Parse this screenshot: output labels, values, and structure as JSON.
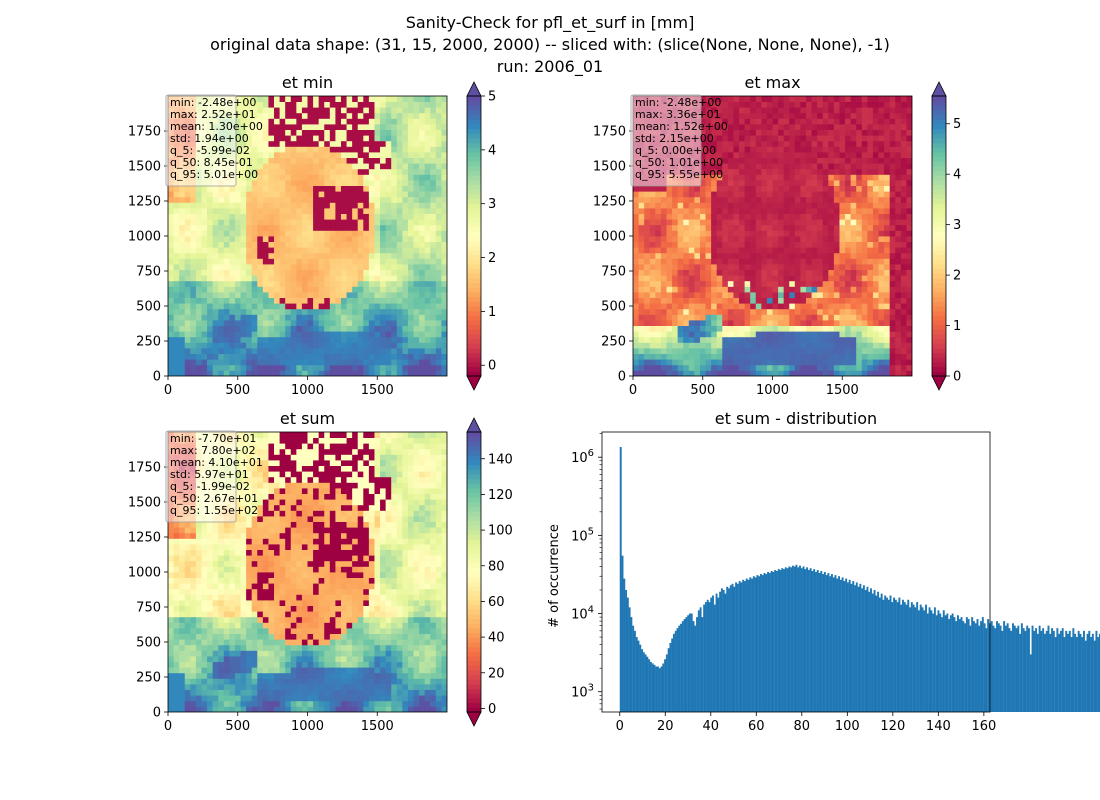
{
  "suptitle": {
    "line1": "Sanity-Check for pfl_et_surf in [mm]",
    "line2": "original data shape: (31, 15, 2000, 2000) -- sliced with: (slice(None, None, None), -1)",
    "line3": "run: 2006_01"
  },
  "colors": {
    "spectral": [
      "#9e0142",
      "#d53e4f",
      "#f46d43",
      "#fdae61",
      "#fee08b",
      "#ffffbf",
      "#e6f598",
      "#abdda4",
      "#66c2a5",
      "#3288bd",
      "#5e4fa2"
    ],
    "bar": "#1f77b4"
  },
  "chart_data": [
    {
      "type": "heatmap",
      "title": "et min",
      "xticks": [
        0,
        500,
        1000,
        1500
      ],
      "yticks": [
        0,
        250,
        500,
        750,
        1000,
        1250,
        1500,
        1750
      ],
      "xlim": [
        0,
        2000
      ],
      "ylim": [
        0,
        2000
      ],
      "colorbar": {
        "vmin": -0.2,
        "vmax": 5,
        "ticks": [
          0,
          1,
          2,
          3,
          4,
          5
        ],
        "extend": "both",
        "colormap": "Spectral"
      },
      "stats": [
        "min: -2.48e+00",
        "max: 2.52e+01",
        "mean: 1.30e+00",
        "std: 1.94e+00",
        "q_5: -5.99e-02",
        "q_50: 8.45e-01",
        "q_95: 5.01e+00"
      ]
    },
    {
      "type": "heatmap",
      "title": "et max",
      "xticks": [
        0,
        500,
        1000,
        1500
      ],
      "yticks": [
        0,
        250,
        500,
        750,
        1000,
        1250,
        1500,
        1750
      ],
      "xlim": [
        0,
        2000
      ],
      "ylim": [
        0,
        2000
      ],
      "colorbar": {
        "vmin": 0,
        "vmax": 5.55,
        "ticks": [
          0,
          1,
          2,
          3,
          4,
          5
        ],
        "extend": "both",
        "colormap": "Spectral"
      },
      "stats": [
        "min: -2.48e+00",
        "max: 3.36e+01",
        "mean: 1.52e+00",
        "std: 2.15e+00",
        "q_5: 0.00e+00",
        "q_50: 1.01e+00",
        "q_95: 5.55e+00"
      ]
    },
    {
      "type": "heatmap",
      "title": "et sum",
      "xticks": [
        0,
        500,
        1000,
        1500
      ],
      "yticks": [
        0,
        250,
        500,
        750,
        1000,
        1250,
        1500,
        1750
      ],
      "xlim": [
        0,
        2000
      ],
      "ylim": [
        0,
        2000
      ],
      "colorbar": {
        "vmin": -2,
        "vmax": 155,
        "ticks": [
          0,
          20,
          40,
          60,
          80,
          100,
          120,
          140
        ],
        "extend": "both",
        "colormap": "Spectral"
      },
      "stats": [
        "min: -7.70e+01",
        "max: 7.80e+02",
        "mean: 4.10e+01",
        "std: 5.97e+01",
        "q_5: -1.99e-02",
        "q_50: 2.67e+01",
        "q_95: 1.55e+02"
      ]
    },
    {
      "type": "bar",
      "title": "et sum - distribution",
      "ylabel": "# of occurrence",
      "xlabel": "",
      "yscale": "log",
      "xlim": [
        -7.8,
        162.7
      ],
      "ylim": [
        550,
        2100000
      ],
      "xticks": [
        0,
        20,
        40,
        60,
        80,
        100,
        120,
        140,
        160
      ],
      "yticks": [
        1000,
        10000,
        100000,
        1000000
      ],
      "ytick_labels": [
        "10^3",
        "10^4",
        "10^5",
        "10^6"
      ],
      "bin_width": 0.78,
      "bin_start": 0,
      "values": [
        1350000,
        55000,
        28000,
        20000,
        16000,
        12000,
        9000,
        7000,
        6000,
        5000,
        4500,
        4000,
        3500,
        3200,
        3000,
        2800,
        2600,
        2400,
        2300,
        2200,
        2100,
        2100,
        2000,
        2100,
        2300,
        2600,
        3000,
        3600,
        4200,
        4800,
        5500,
        6000,
        6500,
        7000,
        7400,
        8000,
        8500,
        9000,
        9500,
        10000,
        10000,
        8000,
        7000,
        9000,
        11000,
        12000,
        9000,
        13000,
        14000,
        15000,
        14000,
        16000,
        17000,
        13000,
        18000,
        16000,
        19000,
        21000,
        20000,
        18000,
        22000,
        21000,
        23000,
        24000,
        22000,
        25000,
        24000,
        26000,
        25000,
        27000,
        26000,
        28000,
        27000,
        29000,
        28000,
        30000,
        29000,
        31000,
        30000,
        32000,
        31000,
        33000,
        32000,
        34000,
        33000,
        35000,
        34000,
        36000,
        35000,
        37000,
        36000,
        38000,
        37000,
        39000,
        38000,
        40000,
        39000,
        41000,
        40000,
        42000,
        39000,
        41000,
        38000,
        40000,
        37000,
        39000,
        36000,
        38000,
        35000,
        37000,
        34000,
        36000,
        33000,
        35000,
        32000,
        34000,
        31000,
        33000,
        30000,
        32000,
        29000,
        31000,
        28000,
        30000,
        27000,
        29000,
        26000,
        28000,
        25000,
        27000,
        24000,
        26000,
        23000,
        25000,
        22000,
        24000,
        21000,
        23000,
        20000,
        22000,
        19000,
        21000,
        18000,
        20000,
        17000,
        19000,
        16000,
        18000,
        15000,
        17000,
        16000,
        15000,
        17000,
        14000,
        16000,
        15000,
        14000,
        16000,
        13000,
        15000,
        14000,
        13000,
        15000,
        12000,
        14000,
        13000,
        12000,
        14000,
        11000,
        13000,
        12000,
        11000,
        13000,
        10000,
        12000,
        11000,
        10000,
        12000,
        9500,
        11000,
        10000,
        9000,
        11000,
        9500,
        10000,
        8500,
        9500,
        10000,
        9000,
        8000,
        9500,
        8500,
        9000,
        8000,
        7500,
        9000,
        8500,
        7000,
        9000,
        8000,
        7500,
        8500,
        7000,
        8000,
        9000,
        7500,
        6500,
        8500,
        7500,
        8000,
        7000,
        6500,
        8000,
        7500,
        7000,
        6000,
        8000,
        7000,
        7500,
        6500,
        6000,
        7500,
        7000,
        6500,
        7000,
        5500,
        7500,
        6500,
        6000,
        7000,
        6500,
        3000,
        7000,
        6000,
        6500,
        5500,
        7000,
        6000,
        6500,
        5500,
        6000,
        7000,
        5500,
        6500,
        6000,
        5000,
        6500,
        5500,
        6000,
        6500,
        5000,
        6000,
        5500,
        6000,
        5000,
        6500,
        5500,
        5000,
        6000,
        5500,
        5000,
        6000,
        4500,
        5500,
        6000,
        5000,
        5500,
        4500,
        6000,
        5000,
        5500,
        4500,
        5000,
        6000,
        4500,
        5500,
        5000,
        4500,
        5500,
        5000,
        4000,
        5500,
        4500,
        5000,
        4500,
        5000,
        4000,
        5500,
        4500,
        5000,
        4000,
        4500,
        5000,
        4000,
        4500,
        5000,
        4000,
        4500,
        3500,
        5000,
        4000,
        4500,
        4000,
        3500,
        4500,
        4000,
        4500,
        3500,
        4000,
        4500,
        3500,
        4000,
        3500,
        4500,
        3500,
        4000,
        3000,
        4000,
        3500,
        4000,
        3000,
        3500,
        4000,
        3000,
        3500,
        3000,
        4000,
        3000,
        3500,
        3000,
        3500,
        3000,
        3500,
        3000,
        1500,
        3500,
        3000,
        3500,
        2500,
        3000,
        3500,
        3000,
        2500,
        3500,
        3000,
        2500,
        3000,
        3500,
        2500,
        3000,
        2500,
        3000,
        2500,
        3000,
        2500,
        3000,
        2500,
        3500,
        2500,
        3000,
        2500,
        3000,
        2500,
        3000,
        3000,
        2500,
        2500,
        3000,
        2500,
        3000,
        2500,
        2500,
        3000,
        2500,
        3000,
        2500,
        2500,
        3000,
        2500,
        3000,
        3500,
        3000,
        2500,
        3500,
        3000,
        3000,
        3500,
        3000,
        3000,
        3500,
        3000,
        1800,
        3500,
        3000,
        2500,
        3000,
        3500,
        3000,
        2500,
        3000,
        3500,
        3000,
        3000,
        2500,
        3500,
        3000,
        3500,
        3000,
        2500,
        3000,
        3500,
        3000,
        2500,
        3000,
        3500,
        3000,
        2500,
        3000,
        2500,
        3500,
        3000,
        3000,
        2500,
        3500,
        3000,
        2500,
        3000,
        3500,
        3000,
        2500,
        3000
      ]
    }
  ]
}
